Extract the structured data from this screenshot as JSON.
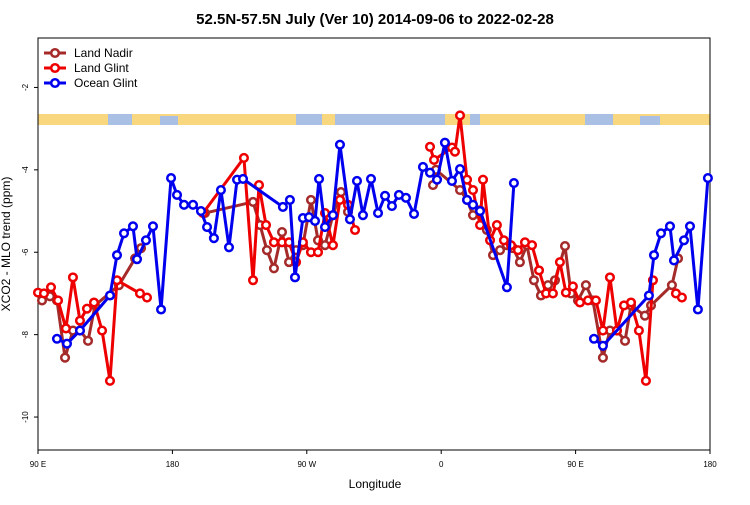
{
  "chart_data": {
    "type": "line",
    "title": "52.5N-57.5N July (Ver 10)   2014-09-06 to 2022-02-28",
    "x_label": "Longitude",
    "y_label": "XCO2 - MLO trend (ppm)",
    "xlim": [
      90,
      540
    ],
    "xticks": [
      {
        "value": 90,
        "label": "90 E"
      },
      {
        "value": 180,
        "label": "180"
      },
      {
        "value": 270,
        "label": "90 W"
      },
      {
        "value": 360,
        "label": "0"
      },
      {
        "value": 450,
        "label": "90 E"
      },
      {
        "value": 540,
        "label": "180"
      }
    ],
    "ylim": [
      -10.8,
      -0.8
    ],
    "yticks": [
      -10,
      -8,
      -6,
      -4,
      -2
    ],
    "legend": "top-left",
    "series": [
      {
        "name": "Land Nadir",
        "color": "#a52a2a",
        "x": [
          92.7,
          98.0,
          102.7,
          108.1,
          113.4,
          118.1,
          123.5,
          128.2,
          144.2,
          155.0,
          159.0,
          null,
          201.8,
          234.0,
          238.7,
          243.3,
          248.0,
          253.4,
          258.1,
          262.8,
          267.4,
          272.8,
          277.5,
          282.2,
          287.5,
          292.9,
          297.6,
          null,
          354.5,
          356.5,
          372.6,
          377.3,
          381.3,
          386.0,
          390.6,
          394.7,
          399.4,
          404.0,
          408.1,
          412.7,
          417.4,
          422.1,
          426.8,
          431.5,
          436.2,
          442.9,
          446.9,
          451.6,
          456.9,
          461.6,
          468.3,
          473.0,
          477.7,
          483.1,
          487.1,
          496.4,
          500.5,
          514.5,
          518.6
        ],
        "values": [
          -7.17,
          -7.07,
          -7.17,
          -8.56,
          -7.9,
          -7.9,
          -8.15,
          -7.29,
          -6.8,
          -6.15,
          -5.9,
          null,
          -5.05,
          -4.78,
          -5.34,
          -5.95,
          -6.39,
          -5.51,
          -6.24,
          -5.95,
          -5.83,
          -4.73,
          -5.71,
          -5.83,
          -5.1,
          -4.54,
          -5.02,
          null,
          -4.37,
          -4.0,
          -4.49,
          -4.73,
          -5.1,
          -4.98,
          -5.46,
          -6.07,
          -5.95,
          -5.83,
          -5.9,
          -6.24,
          -5.83,
          -6.68,
          -7.05,
          -6.8,
          -6.68,
          -5.85,
          -7.0,
          -7.17,
          -6.8,
          -7.17,
          -8.56,
          -7.9,
          -7.9,
          -8.15,
          -7.29,
          -7.54,
          -7.29,
          -6.8,
          -6.15
        ]
      },
      {
        "name": "Land Glint",
        "color": "#ee0000",
        "x": [
          90.0,
          94.0,
          98.7,
          103.4,
          108.7,
          113.4,
          118.1,
          122.8,
          127.5,
          132.9,
          138.2,
          142.9,
          158.3,
          163.0,
          null,
          200.5,
          227.9,
          234.0,
          238.0,
          242.7,
          248.0,
          253.4,
          258.1,
          262.8,
          267.4,
          272.8,
          277.5,
          282.2,
          287.5,
          292.2,
          297.6,
          302.3,
          null,
          352.5,
          355.2,
          367.2,
          369.2,
          372.6,
          377.3,
          381.3,
          386.0,
          388.0,
          392.7,
          397.3,
          402.0,
          406.7,
          411.4,
          416.1,
          420.8,
          425.5,
          430.2,
          434.8,
          439.5,
          443.5,
          448.2,
          452.9,
          458.3,
          463.6,
          468.3,
          473.0,
          477.7,
          482.4,
          487.1,
          492.4,
          497.1,
          501.8,
          null,
          517.2,
          521.2
        ],
        "values": [
          -6.98,
          -7.0,
          -6.85,
          -7.17,
          -7.85,
          -6.61,
          -7.66,
          -7.37,
          -7.22,
          -7.9,
          -9.12,
          -6.68,
          -7.0,
          -7.1,
          null,
          -5.05,
          -3.71,
          -6.68,
          -4.37,
          -5.34,
          -5.76,
          -5.76,
          -5.76,
          -6.24,
          -5.76,
          -6.0,
          -6.0,
          -5.05,
          -5.83,
          -4.73,
          -4.85,
          -5.46,
          null,
          -3.44,
          -3.76,
          -3.46,
          -3.56,
          -2.68,
          -4.24,
          -4.49,
          -5.34,
          -4.24,
          -5.71,
          -5.34,
          -5.71,
          -5.83,
          -5.95,
          -5.76,
          -5.83,
          -6.44,
          -7.0,
          -7.0,
          -6.24,
          -6.98,
          -6.83,
          -7.22,
          -7.17,
          -7.17,
          -7.9,
          -6.61,
          -7.9,
          -7.29,
          -7.22,
          -7.9,
          -9.12,
          -6.68,
          null,
          -7.0,
          -7.1
        ]
      },
      {
        "name": "Ocean Glint",
        "color": "#0000ee",
        "x": [
          102.7,
          109.4,
          118.1,
          138.2,
          142.9,
          147.6,
          153.6,
          156.3,
          162.3,
          167.0,
          172.4,
          179.1,
          183.1,
          187.8,
          193.8,
          199.1,
          203.2,
          207.8,
          212.5,
          217.9,
          223.3,
          227.3,
          254.0,
          258.7,
          262.1,
          267.4,
          271.5,
          275.5,
          278.2,
          282.2,
          287.5,
          292.2,
          298.9,
          303.6,
          307.6,
          313.0,
          317.7,
          322.4,
          327.0,
          331.7,
          336.4,
          341.8,
          347.8,
          352.5,
          357.2,
          362.5,
          367.2,
          372.6,
          377.3,
          381.3,
          386.0,
          404.0,
          408.7,
          null,
          462.3,
          468.3,
          499.1,
          502.5,
          507.2,
          513.2,
          515.9,
          522.6,
          526.6,
          531.9,
          538.6
        ],
        "values": [
          -8.1,
          -8.22,
          -7.9,
          -7.05,
          -6.07,
          -5.54,
          -5.37,
          -6.17,
          -5.71,
          -5.37,
          -7.39,
          -4.2,
          -4.61,
          -4.85,
          -4.85,
          -5.0,
          -5.39,
          -5.66,
          -4.49,
          -5.88,
          -4.24,
          -4.22,
          -4.9,
          -4.73,
          -6.61,
          -5.17,
          -5.15,
          -5.24,
          -4.22,
          -5.39,
          -5.1,
          -3.39,
          -5.2,
          -4.27,
          -5.1,
          -4.22,
          -5.05,
          -4.63,
          -4.88,
          -4.61,
          -4.68,
          -5.07,
          -3.93,
          -4.07,
          -4.24,
          -3.34,
          -4.27,
          -3.98,
          -4.73,
          -4.85,
          -5.0,
          -6.85,
          -4.32,
          null,
          -8.1,
          -8.27,
          -7.05,
          -6.07,
          -5.54,
          -5.37,
          -6.2,
          -5.71,
          -5.37,
          -7.39,
          -4.2
        ]
      }
    ]
  }
}
